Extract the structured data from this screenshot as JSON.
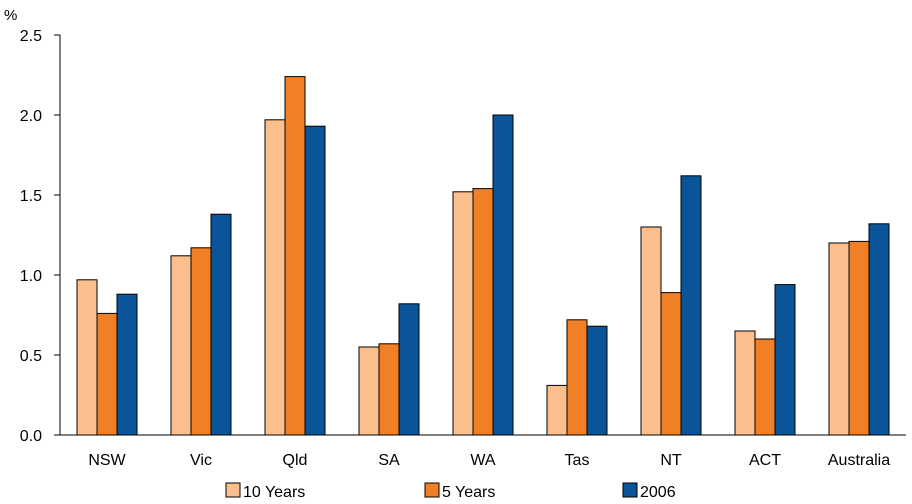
{
  "chart_data": {
    "type": "bar",
    "ylabel": "%",
    "ylim": [
      0,
      2.5
    ],
    "yticks": [
      "0.0",
      "0.5",
      "1.0",
      "1.5",
      "2.0",
      "2.5"
    ],
    "categories": [
      "NSW",
      "Vic",
      "Qld",
      "SA",
      "WA",
      "Tas",
      "NT",
      "ACT",
      "Australia"
    ],
    "series": [
      {
        "name": "10 Years",
        "color": "#FBBF8E",
        "values": [
          0.97,
          1.12,
          1.97,
          0.55,
          1.52,
          0.31,
          1.3,
          0.65,
          1.2
        ]
      },
      {
        "name": "5 Years",
        "color": "#F07F26",
        "values": [
          0.76,
          1.17,
          2.24,
          0.57,
          1.54,
          0.72,
          0.89,
          0.6,
          1.21
        ]
      },
      {
        "name": "2006",
        "color": "#0A5599",
        "values": [
          0.88,
          1.38,
          1.93,
          0.82,
          2.0,
          0.68,
          1.62,
          0.94,
          1.32
        ]
      }
    ],
    "legend_position": "bottom",
    "grid": false
  }
}
